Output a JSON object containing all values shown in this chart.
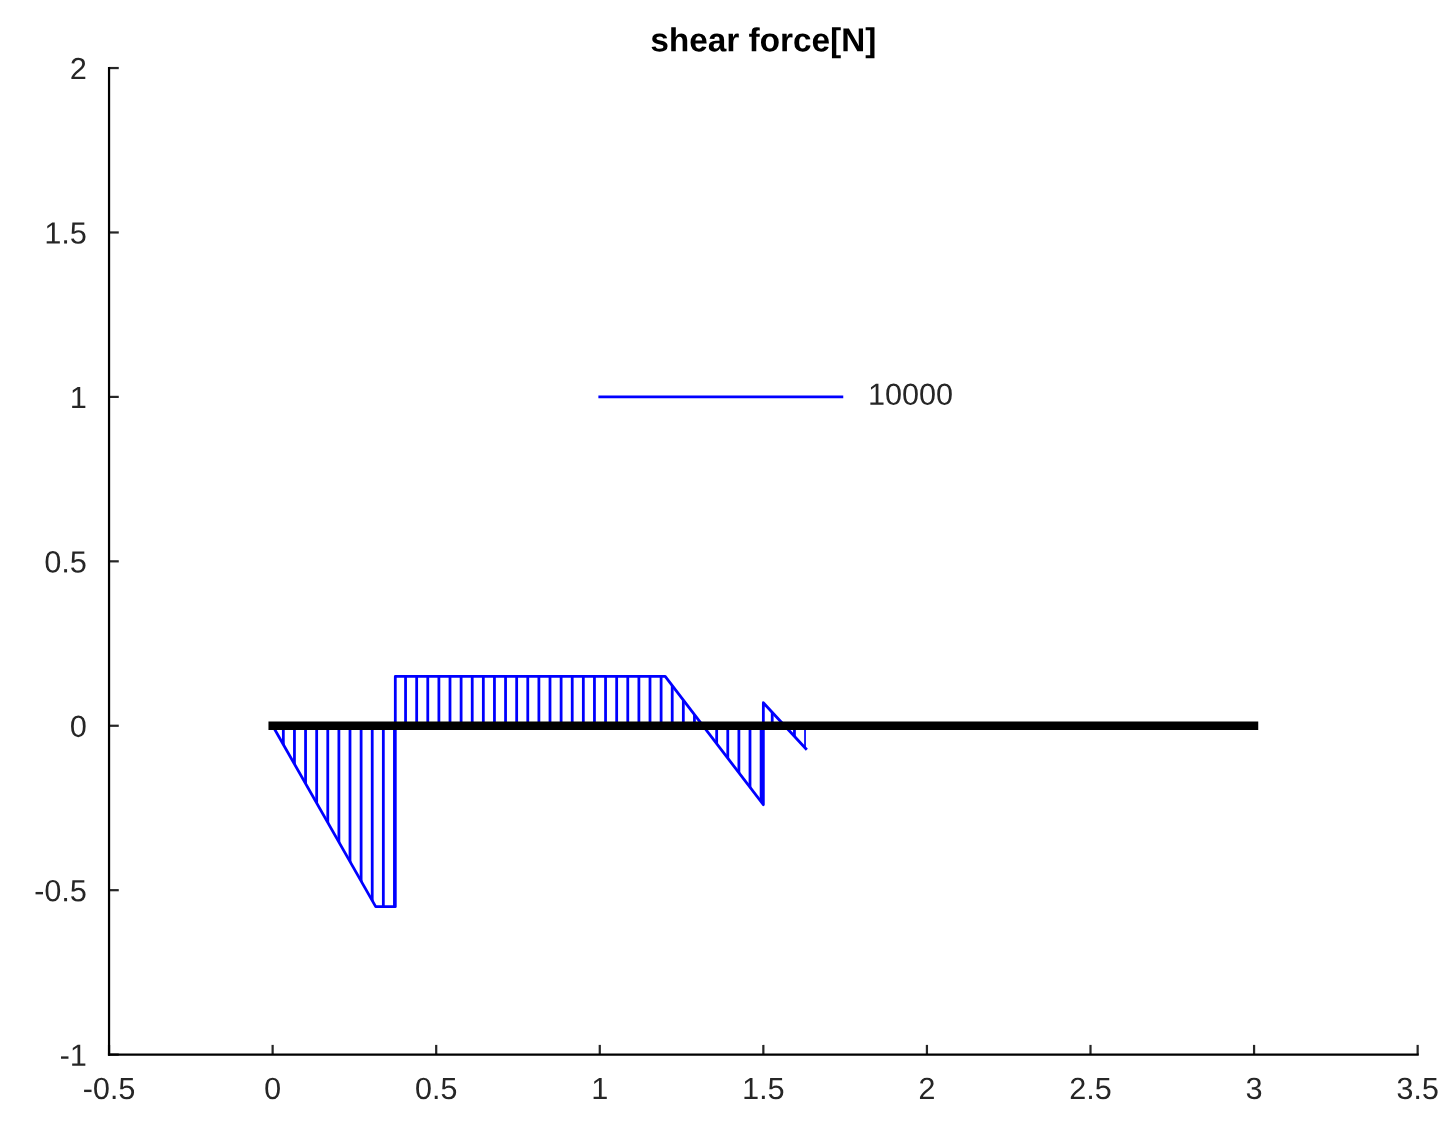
{
  "chart_data": {
    "type": "line",
    "title": "shear force[N]",
    "series": [
      {
        "type": "area",
        "color": "#0000ff",
        "x": [
          0,
          0.315,
          0.375,
          0.375,
          1.2,
          1.5,
          1.5,
          1.63
        ],
        "values": [
          0,
          -0.55,
          -0.55,
          0.15,
          0.15,
          -0.24,
          0.07,
          -0.07
        ]
      },
      {
        "color": "#000000",
        "x": [
          0,
          3
        ],
        "values": [
          0,
          0
        ]
      },
      {
        "name": "10000",
        "color": "#0000ff",
        "x": [
          1,
          1.74
        ],
        "values": [
          1,
          1
        ]
      }
    ],
    "xlim": [
      -0.5,
      3.5
    ],
    "xticks": [
      -0.5,
      0,
      0.5,
      1,
      1.5,
      2,
      2.5,
      3,
      3.5
    ],
    "ylim": [
      -1,
      2
    ],
    "yticks": [
      -1,
      -0.5,
      0,
      0.5,
      1,
      1.5,
      2
    ],
    "grid": false,
    "legend": false
  }
}
